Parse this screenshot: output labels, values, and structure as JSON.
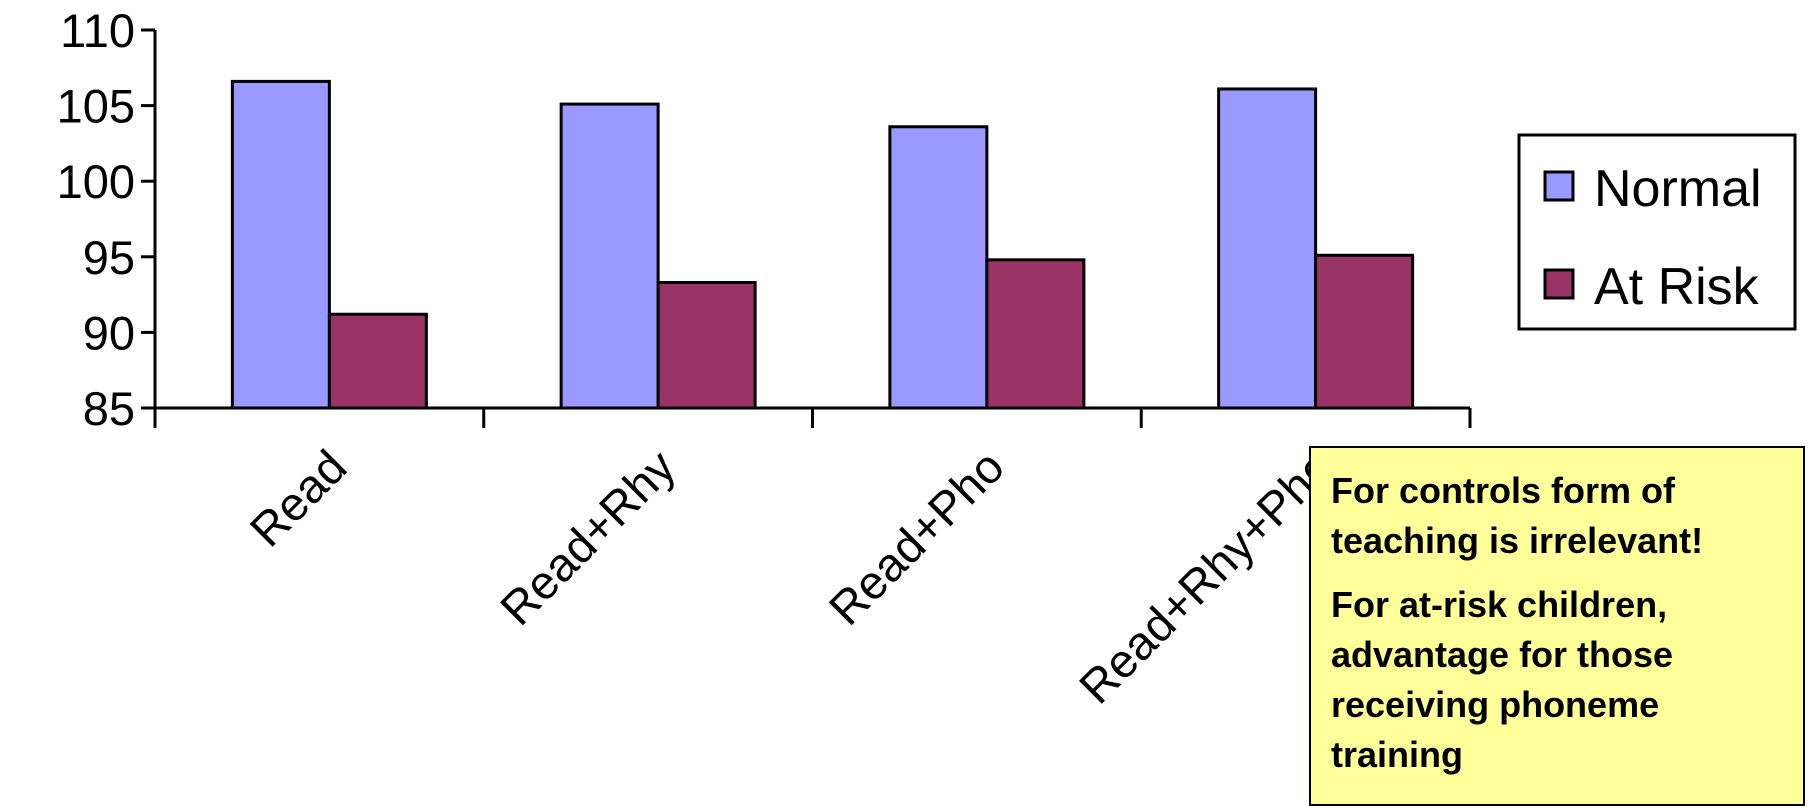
{
  "chart_data": {
    "type": "bar",
    "categories": [
      "Read",
      "Read+Rhy",
      "Read+Pho",
      "Read+Rhy+Pho"
    ],
    "series": [
      {
        "name": "Normal",
        "values": [
          106.6,
          105.1,
          103.6,
          106.1
        ],
        "color": "#9999ff"
      },
      {
        "name": "At Risk",
        "values": [
          91.2,
          93.3,
          94.8,
          95.1
        ],
        "color": "#993366"
      }
    ],
    "ylim": [
      85,
      110
    ],
    "yticks": [
      "85",
      "90",
      "95",
      "100",
      "105",
      "110"
    ],
    "grid": false,
    "legend_position": "right"
  },
  "note": {
    "line1": "For controls form of teaching is irrelevant!",
    "line2": "For at-risk children, advantage for those receiving phoneme training"
  }
}
